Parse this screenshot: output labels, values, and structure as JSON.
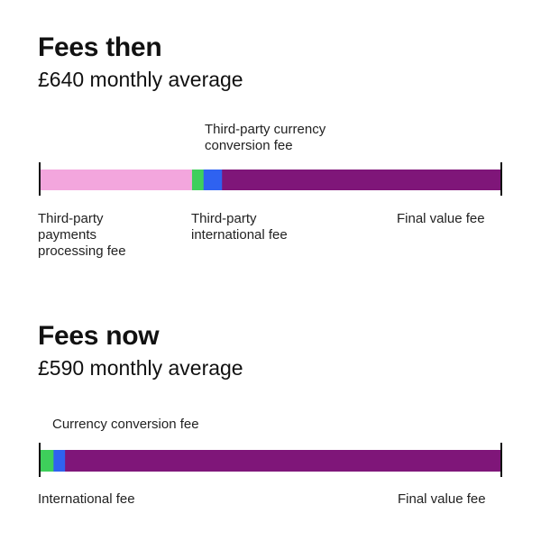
{
  "colors": {
    "payments_processing": "#f3a6dd",
    "international": "#3ecf5b",
    "currency_conversion": "#2f62f0",
    "final_value": "#7f1679",
    "end_tick": "#111111"
  },
  "chart_data": [
    {
      "type": "bar",
      "orientation": "horizontal-stacked",
      "title": "Fees then",
      "subtitle": "£640 monthly average",
      "categories": [
        "Fees then"
      ],
      "series": [
        {
          "name": "Third-party\npayments\nprocessing fee",
          "values": [
            0.33
          ],
          "color_key": "payments_processing"
        },
        {
          "name": "Third-party\ninternational fee",
          "values": [
            0.025
          ],
          "color_key": "international"
        },
        {
          "name": "Third-party currency\nconversion fee",
          "values": [
            0.04
          ],
          "color_key": "currency_conversion"
        },
        {
          "name": "Final value fee",
          "values": [
            0.605
          ],
          "color_key": "final_value"
        }
      ],
      "xlim": [
        0,
        1
      ],
      "grid": false
    },
    {
      "type": "bar",
      "orientation": "horizontal-stacked",
      "title": "Fees now",
      "subtitle": "£590 monthly average",
      "categories": [
        "Fees now"
      ],
      "series": [
        {
          "name": "International fee",
          "values": [
            0.03
          ],
          "color_key": "international"
        },
        {
          "name": "Currency conversion fee",
          "values": [
            0.025
          ],
          "color_key": "currency_conversion"
        },
        {
          "name": "Final value fee",
          "values": [
            0.945
          ],
          "color_key": "final_value"
        }
      ],
      "xlim": [
        0,
        1
      ],
      "grid": false
    }
  ]
}
